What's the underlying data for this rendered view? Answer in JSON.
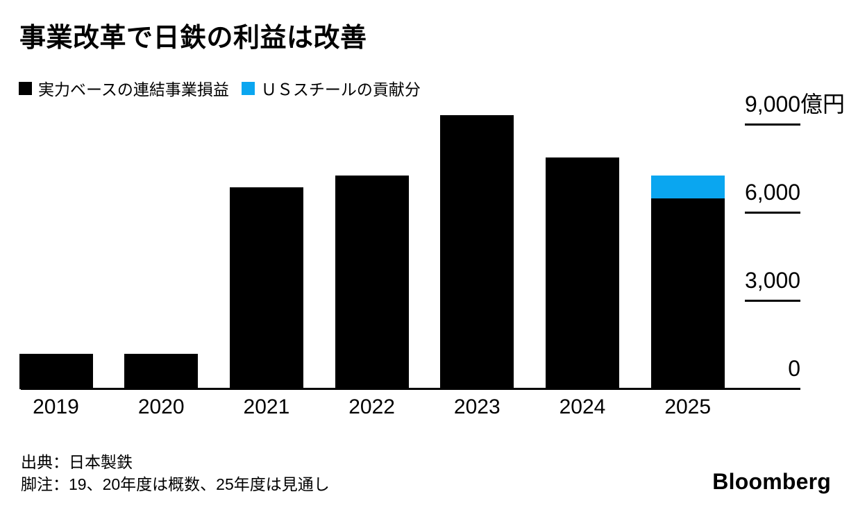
{
  "title": "事業改革で日鉄の利益は改善",
  "legend": [
    {
      "name": "core-profit",
      "label": "実力ベースの連結事業損益",
      "color": "#000000"
    },
    {
      "name": "us-steel-contribution",
      "label": "ＵＳスチールの貢献分",
      "color": "#0aa6f0"
    }
  ],
  "chart_data": {
    "type": "bar",
    "stacked": true,
    "title": "事業改革で日鉄の利益は改善",
    "unit": "億円",
    "categories": [
      "2019",
      "2020",
      "2021",
      "2022",
      "2023",
      "2024",
      "2025"
    ],
    "series": [
      {
        "name": "実力ベースの連結事業損益",
        "color": "#000000",
        "values": [
          1200,
          1200,
          6900,
          7300,
          9350,
          7900,
          6500
        ]
      },
      {
        "name": "ＵＳスチールの貢献分",
        "color": "#0aa6f0",
        "values": [
          0,
          0,
          0,
          0,
          0,
          0,
          800
        ]
      }
    ],
    "yticks": [
      {
        "value": 0,
        "num": "0",
        "unit": ""
      },
      {
        "value": 3000,
        "num": "3,000",
        "unit": ""
      },
      {
        "value": 6000,
        "num": "6,000",
        "unit": ""
      },
      {
        "value": 9000,
        "num": "9,000",
        "unit": "億円"
      }
    ],
    "ylim": [
      0,
      9500
    ],
    "grid": false,
    "axis_side": "right",
    "legend_position": "top-left"
  },
  "footer": {
    "source": "出典：日本製鉄",
    "footnote": "脚注：19、20年度は概数、25年度は見通し"
  },
  "branding": "Bloomberg"
}
